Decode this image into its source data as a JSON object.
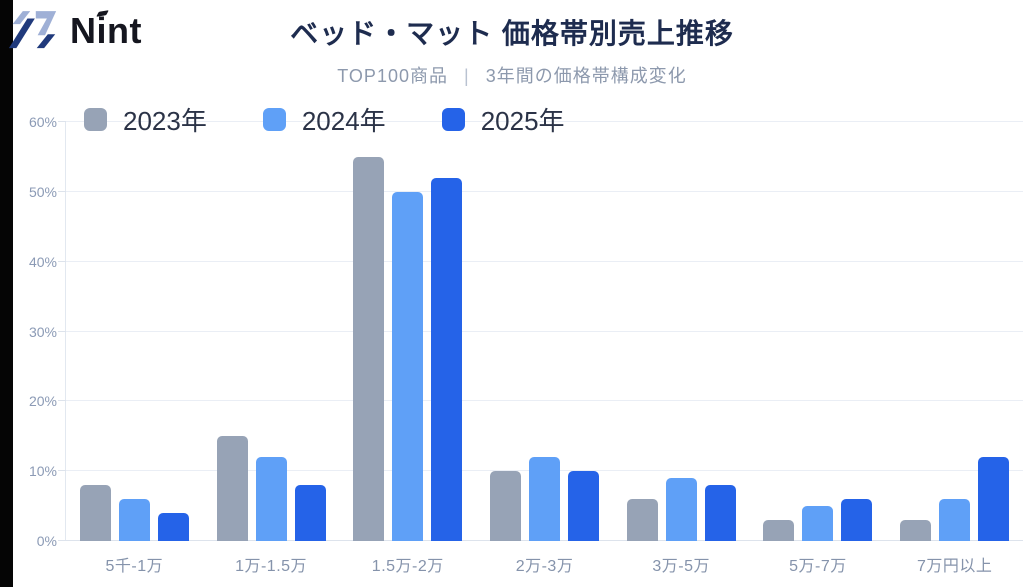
{
  "brand": {
    "name": "Nint"
  },
  "header": {
    "title": "ベッド・マット 価格帯別売上推移",
    "subtitle_left": "TOP100商品",
    "subtitle_sep": "|",
    "subtitle_right": "3年間の価格帯構成変化"
  },
  "chart_data": {
    "type": "bar",
    "title": "ベッド・マット 価格帯別売上推移",
    "subtitle": "TOP100商品 | 3年間の価格帯構成変化",
    "categories": [
      "5千-1万",
      "1万-1.5万",
      "1.5万-2万",
      "2万-3万",
      "3万-5万",
      "5万-7万",
      "7万円以上"
    ],
    "series": [
      {
        "name": "2023年",
        "color": "#97a3b6",
        "values": [
          8,
          15,
          55,
          10,
          6,
          3,
          3
        ]
      },
      {
        "name": "2024年",
        "color": "#5fa0f7",
        "values": [
          6,
          12,
          50,
          12,
          9,
          5,
          6
        ]
      },
      {
        "name": "2025年",
        "color": "#2563e8",
        "values": [
          4,
          8,
          52,
          10,
          8,
          6,
          12
        ]
      }
    ],
    "xlabel": "",
    "ylabel": "",
    "ylim": [
      0,
      60
    ],
    "ytick_step": 10,
    "yticks": [
      "0%",
      "10%",
      "20%",
      "30%",
      "40%",
      "50%",
      "60%"
    ],
    "grid": true,
    "legend_position": "top-left",
    "colors": {
      "grid": "#eaeef5",
      "axis": "#dde3ec",
      "tick_label": "#8b9ab5",
      "title": "#1e2c4f",
      "subtitle": "#8d99ad",
      "legend_text": "#2b3347"
    }
  }
}
